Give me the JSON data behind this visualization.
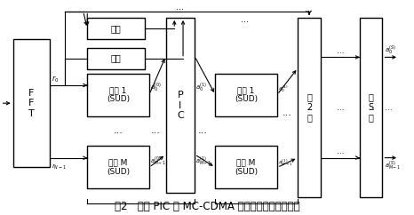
{
  "title": "图2   基于 PIC 的 MC-CDMA 系统多级检测原理框图",
  "title_fontsize": 9,
  "bg_color": "#ffffff",
  "arrow_color": "#000000",
  "font_color": "#000000",
  "fft": [
    0.03,
    0.22,
    0.09,
    0.6
  ],
  "delay1": [
    0.21,
    0.82,
    0.14,
    0.1
  ],
  "delay2": [
    0.21,
    0.68,
    0.14,
    0.1
  ],
  "sud1": [
    0.21,
    0.46,
    0.15,
    0.2
  ],
  "sudm": [
    0.21,
    0.12,
    0.15,
    0.2
  ],
  "pic": [
    0.4,
    0.1,
    0.07,
    0.82
  ],
  "sud1b": [
    0.52,
    0.46,
    0.15,
    0.2
  ],
  "sudmb": [
    0.52,
    0.12,
    0.15,
    0.2
  ],
  "stage2": [
    0.72,
    0.08,
    0.055,
    0.84
  ],
  "stages": [
    0.87,
    0.08,
    0.055,
    0.84
  ]
}
